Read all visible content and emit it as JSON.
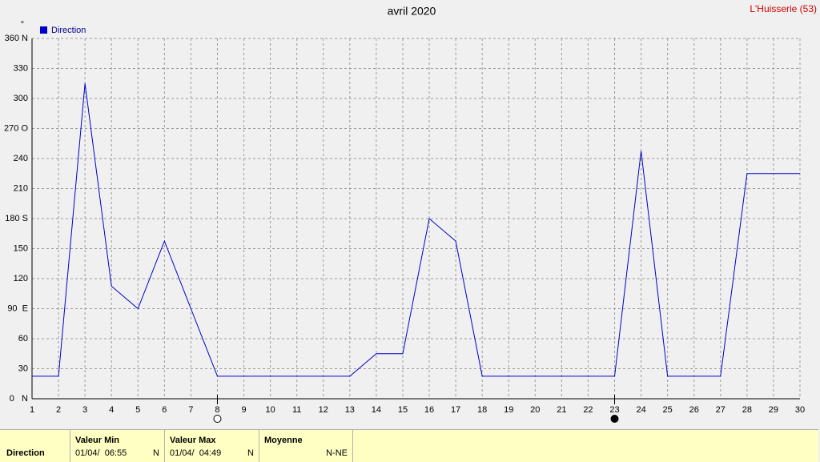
{
  "chart_data": {
    "type": "line",
    "title": "avril 2020",
    "location": "L'Huisserie (53)",
    "y_unit": "°",
    "x": [
      1,
      2,
      3,
      4,
      5,
      6,
      7,
      8,
      9,
      10,
      11,
      12,
      13,
      14,
      15,
      16,
      17,
      18,
      19,
      20,
      21,
      22,
      23,
      24,
      25,
      26,
      27,
      28,
      29,
      30
    ],
    "series": [
      {
        "name": "Direction",
        "color": "#0000cc",
        "values": [
          22.5,
          22.5,
          315,
          112.5,
          90,
          157.5,
          90,
          22.5,
          22.5,
          22.5,
          22.5,
          22.5,
          22.5,
          45,
          45,
          180,
          157.5,
          22.5,
          22.5,
          22.5,
          22.5,
          22.5,
          22.5,
          247.5,
          22.5,
          22.5,
          22.5,
          225,
          225,
          225
        ]
      }
    ],
    "xlim": [
      1,
      30
    ],
    "xticks": [
      1,
      2,
      3,
      4,
      5,
      6,
      7,
      8,
      9,
      10,
      11,
      12,
      13,
      14,
      15,
      16,
      17,
      18,
      19,
      20,
      21,
      22,
      23,
      24,
      25,
      26,
      27,
      28,
      29,
      30
    ],
    "ylim": [
      0,
      360
    ],
    "yticks": [
      {
        "value": 0,
        "label": "0   N"
      },
      30,
      60,
      {
        "value": 90,
        "label": "90  E"
      },
      120,
      150,
      {
        "value": 180,
        "label": "180 S"
      },
      210,
      240,
      {
        "value": 270,
        "label": "270 O"
      },
      300,
      330,
      {
        "value": 360,
        "label": "360 N"
      }
    ],
    "grid": true,
    "moons": [
      {
        "x": 8,
        "filled": false
      },
      {
        "x": 23,
        "filled": true
      }
    ]
  },
  "footer": {
    "row_label": "Direction",
    "columns": [
      {
        "header": "Valeur Min",
        "date": "01/04/  06:55",
        "value": "N"
      },
      {
        "header": "Valeur Max",
        "date": "01/04/  04:49",
        "value": "N"
      },
      {
        "header": "Moyenne",
        "value": "N-NE"
      }
    ]
  }
}
